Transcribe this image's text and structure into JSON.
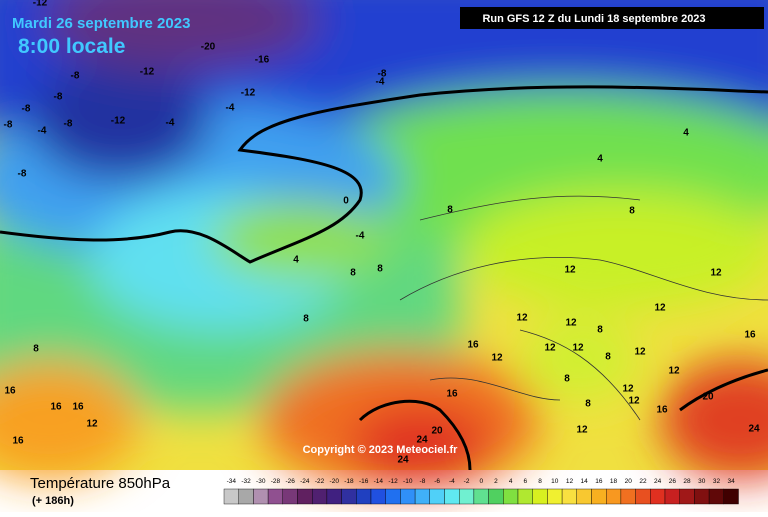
{
  "header": {
    "date": "Mardi 26 septembre 2023",
    "time": "8:00 locale",
    "run": "Run GFS 12 Z du Lundi 18 septembre 2023"
  },
  "map": {
    "contour_labels": [
      "-12",
      "-20",
      "-16",
      "-8",
      "-12",
      "-8",
      "-4",
      "-8",
      "-8",
      "-12",
      "-4",
      "-8",
      "-4",
      "-8",
      "-12",
      "-4",
      "-8",
      "0",
      "-4",
      "4",
      "4",
      "8",
      "8",
      "4",
      "8",
      "8",
      "12",
      "12",
      "8",
      "12",
      "12",
      "8",
      "12",
      "16",
      "8",
      "16",
      "12",
      "12",
      "12",
      "8",
      "12",
      "12",
      "8",
      "16",
      "12",
      "16",
      "16",
      "16",
      "12",
      "20",
      "8",
      "12",
      "16",
      "16",
      "20",
      "24",
      "12",
      "24",
      "24"
    ],
    "copyright": "Copyright © 2023 Meteociel.fr"
  },
  "footer": {
    "title": "Température 850hPa",
    "lead": "(+ 186h)",
    "scale": {
      "labels": [
        -34,
        -32,
        -30,
        -28,
        -26,
        -24,
        -22,
        -20,
        -18,
        -16,
        -14,
        -12,
        -10,
        -8,
        -6,
        -4,
        -2,
        0,
        2,
        4,
        6,
        8,
        10,
        12,
        14,
        16,
        18,
        20,
        22,
        24,
        26,
        28,
        30,
        32,
        34
      ],
      "colors": [
        "#c8c8c8",
        "#a8a8a8",
        "#b090b0",
        "#905090",
        "#783878",
        "#602060",
        "#502070",
        "#402080",
        "#3030a0",
        "#2040c0",
        "#2050e0",
        "#2070f0",
        "#3090f8",
        "#40b0f8",
        "#50d0f8",
        "#60e8f0",
        "#70f0d0",
        "#60e090",
        "#50d060",
        "#80e040",
        "#b0e830",
        "#d8f020",
        "#f0f030",
        "#f8e040",
        "#f8c830",
        "#f8b020",
        "#f89820",
        "#f07020",
        "#e85020",
        "#e03020",
        "#c82020",
        "#a01818",
        "#801010",
        "#600808",
        "#400000"
      ]
    }
  }
}
